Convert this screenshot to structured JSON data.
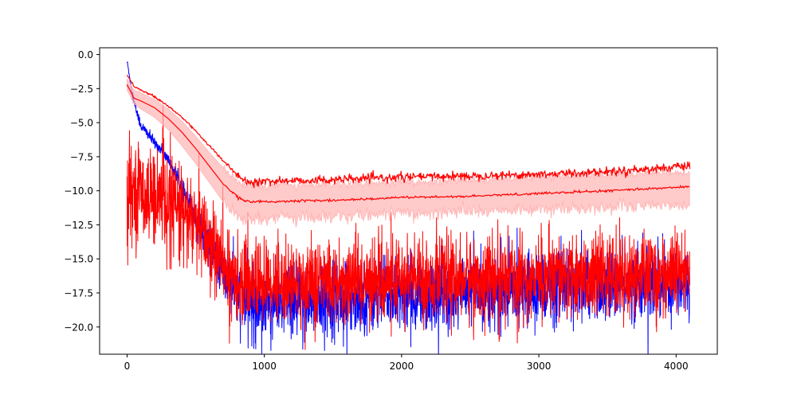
{
  "chart_data": {
    "type": "line",
    "title": "",
    "xlabel": "",
    "ylabel": "",
    "xlim": [
      -200,
      4300
    ],
    "ylim": [
      -22,
      0.5
    ],
    "x_ticks": [
      0,
      1000,
      2000,
      3000,
      4000
    ],
    "x_tick_labels": [
      "0",
      "1000",
      "2000",
      "3000",
      "4000"
    ],
    "y_ticks": [
      0,
      -2.5,
      -5,
      -7.5,
      -10,
      -12.5,
      -15,
      -17.5,
      -20
    ],
    "y_tick_labels": [
      "0.0",
      "−2.5",
      "−5.0",
      "−7.5",
      "−10.0",
      "−12.5",
      "−15.0",
      "−17.5",
      "−20.0"
    ],
    "grid": false,
    "legend": "none",
    "colors": {
      "blue_series": "#0000ff",
      "red_series": "#ff0000",
      "band_fill": "#ffb3b3"
    },
    "series": [
      {
        "style": "noisy",
        "color": "#0000ff",
        "x": [
          0,
          50,
          100,
          150,
          200,
          250,
          300,
          400,
          500,
          600,
          700,
          800,
          900,
          1000,
          1500,
          2000,
          2500,
          3000,
          3500,
          4100
        ],
        "y": [
          -0.5,
          -3.5,
          -5.2,
          -5.8,
          -6.5,
          -7.0,
          -7.7,
          -9.8,
          -12.0,
          -14.0,
          -16.0,
          -17.5,
          -18.3,
          -18.3,
          -17.9,
          -17.6,
          -17.3,
          -17.1,
          -16.9,
          -16.6
        ],
        "noise": [
          0.1,
          0.2,
          0.2,
          0.2,
          0.2,
          0.2,
          0.2,
          0.3,
          0.5,
          0.8,
          1.0,
          1.2,
          1.3,
          1.3,
          1.3,
          1.3,
          1.3,
          1.3,
          1.3,
          1.3
        ]
      },
      {
        "style": "noisy",
        "color": "#ff0000",
        "x": [
          0,
          100,
          200,
          300,
          400,
          500,
          600,
          700,
          800,
          900,
          1000,
          1500,
          2000,
          2500,
          3000,
          3500,
          4100
        ],
        "y": [
          -9.8,
          -10.0,
          -10.3,
          -10.8,
          -11.5,
          -12.5,
          -13.8,
          -15.5,
          -16.4,
          -16.6,
          -16.7,
          -16.6,
          -16.5,
          -16.4,
          -16.3,
          -16.2,
          -16.1
        ],
        "noise": [
          1.6,
          1.7,
          1.8,
          1.8,
          1.8,
          1.7,
          1.7,
          1.6,
          1.5,
          1.5,
          1.5,
          1.5,
          1.5,
          1.5,
          1.5,
          1.5,
          1.5
        ]
      },
      {
        "style": "mean_band",
        "color": "#ff0000",
        "x": [
          0,
          50,
          100,
          200,
          300,
          400,
          500,
          600,
          700,
          800,
          850,
          900,
          1000,
          1500,
          2000,
          2500,
          3000,
          3500,
          4100
        ],
        "y": [
          -2.2,
          -3.2,
          -3.4,
          -3.9,
          -4.7,
          -5.7,
          -6.9,
          -8.2,
          -9.5,
          -10.4,
          -10.7,
          -10.8,
          -10.8,
          -10.7,
          -10.5,
          -10.4,
          -10.2,
          -10.0,
          -9.7
        ],
        "lower": [
          -2.6,
          -3.6,
          -4.0,
          -4.6,
          -5.5,
          -6.7,
          -8.0,
          -9.4,
          -10.8,
          -11.8,
          -12.2,
          -12.1,
          -12.0,
          -11.9,
          -11.7,
          -11.5,
          -11.4,
          -11.2,
          -11.0
        ],
        "upper": [
          -1.8,
          -2.6,
          -2.8,
          -3.3,
          -4.0,
          -4.9,
          -6.0,
          -7.2,
          -8.3,
          -9.3,
          -9.6,
          -9.6,
          -9.6,
          -9.5,
          -9.4,
          -9.2,
          -9.0,
          -8.8,
          -8.6
        ]
      },
      {
        "style": "line",
        "color": "#ff0000",
        "x": [
          0,
          50,
          100,
          200,
          300,
          400,
          500,
          600,
          700,
          800,
          850,
          900,
          1000,
          1500,
          2000,
          2500,
          3000,
          3500,
          4100
        ],
        "y": [
          -1.5,
          -2.3,
          -2.6,
          -3.1,
          -3.8,
          -4.6,
          -5.6,
          -6.7,
          -7.8,
          -8.8,
          -9.3,
          -9.4,
          -9.3,
          -9.2,
          -9.0,
          -8.9,
          -8.8,
          -8.6,
          -8.2
        ],
        "noise": [
          0,
          0.05,
          0.05,
          0.05,
          0.05,
          0.05,
          0.05,
          0.05,
          0.05,
          0.08,
          0.1,
          0.15,
          0.15,
          0.15,
          0.15,
          0.15,
          0.15,
          0.15,
          0.15
        ]
      }
    ]
  }
}
